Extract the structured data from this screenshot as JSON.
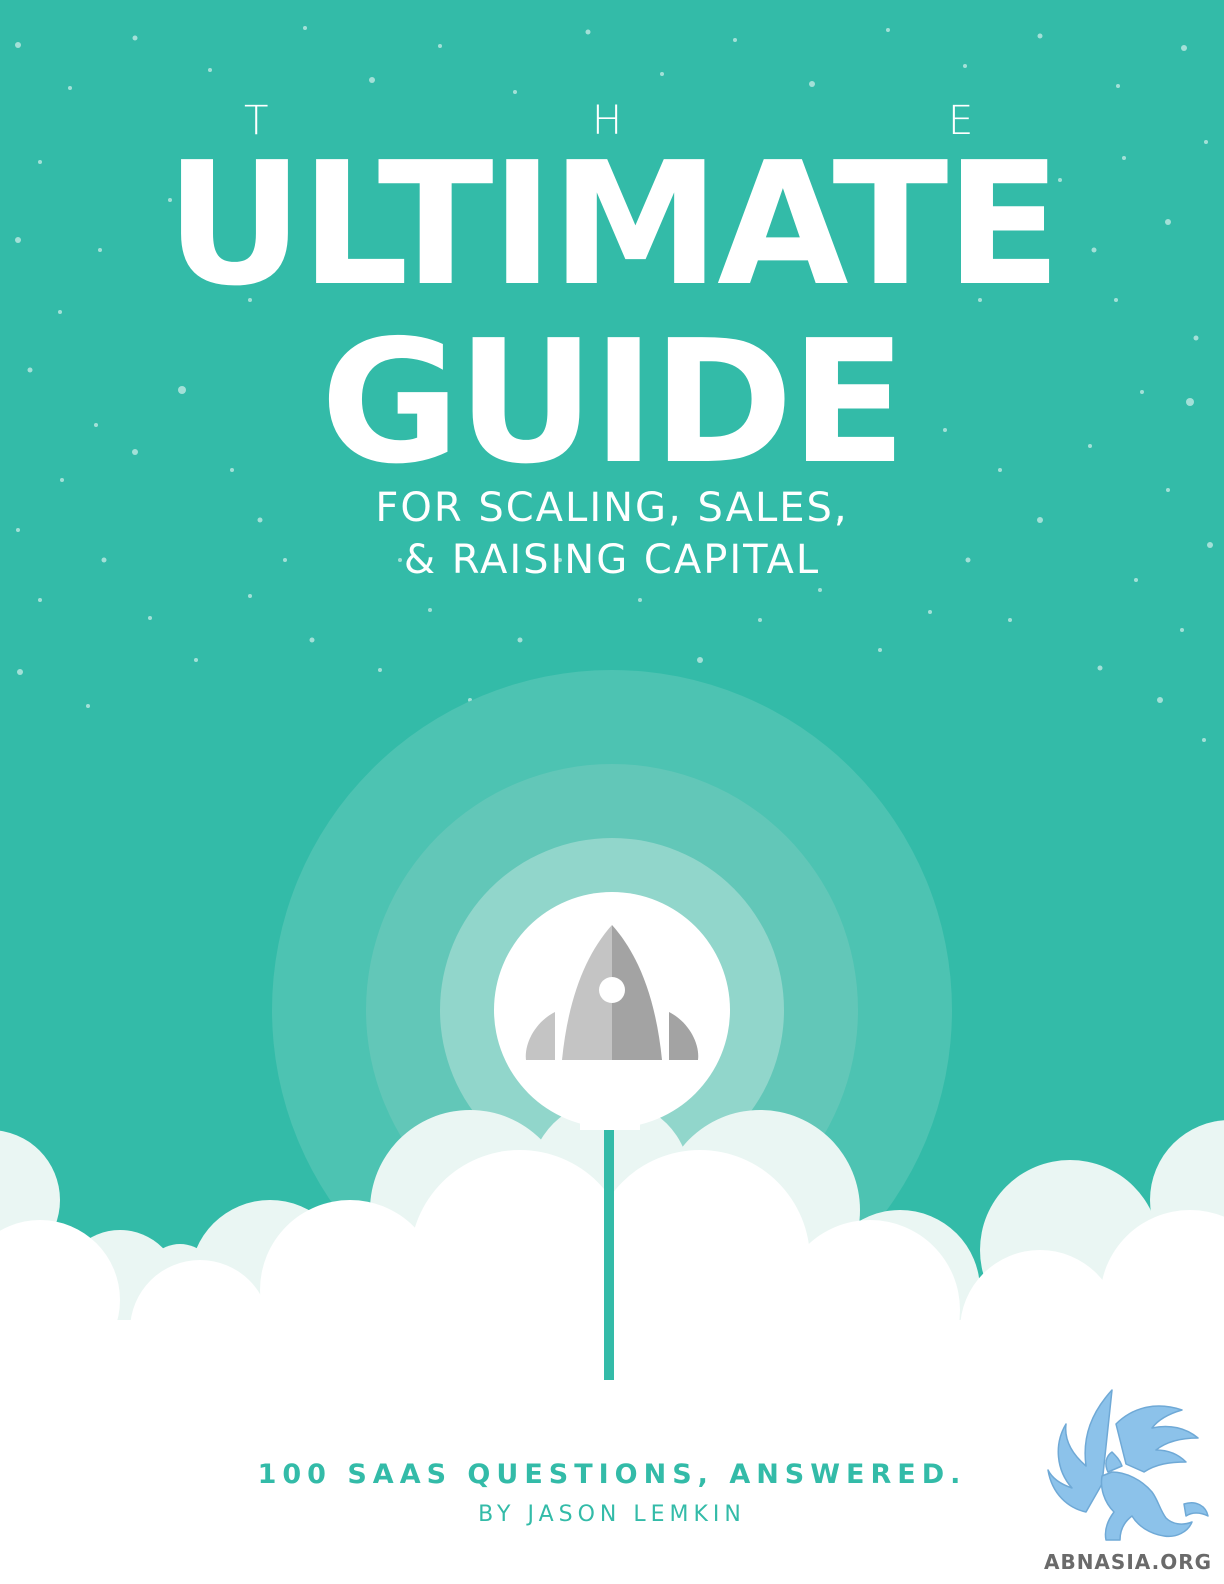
{
  "cover": {
    "the_letters": [
      "T",
      "H",
      "E"
    ],
    "title_line_1": "ULTIMATE",
    "title_line_2": "GUIDE",
    "subtitle_line_1": "FOR SCALING, SALES,",
    "subtitle_line_2": "& RAISING CAPITAL",
    "tagline": "100 SAAS QUESTIONS, ANSWERED.",
    "byline": "BY JASON LEMKIN"
  },
  "illustration": {
    "rocket": "rocket-icon",
    "background": "starfield",
    "ground": "clouds"
  },
  "watermark": {
    "text": "ABNASIA.ORG",
    "emblem": "griffin-logo"
  },
  "colors": {
    "teal": "#33bba8",
    "white": "#ffffff",
    "rocket_light": "#c4c4c4",
    "rocket_dark": "#a3a3a3",
    "griffin_blue": "#8cc2ea"
  }
}
